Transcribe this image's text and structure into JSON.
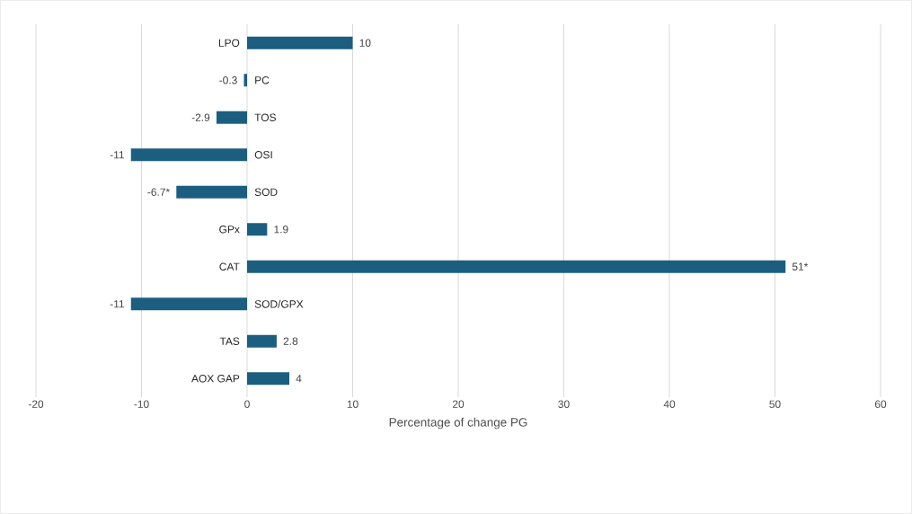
{
  "chart_data": {
    "type": "bar",
    "orientation": "horizontal",
    "xlabel": "Percentage of change PG",
    "categories": [
      "LPO",
      "PC",
      "TOS",
      "OSI",
      "SOD",
      "GPx",
      "CAT",
      "SOD/GPX",
      "TAS",
      "AOX GAP"
    ],
    "values": [
      10,
      -0.3,
      -2.9,
      -11,
      -6.7,
      1.9,
      51,
      -11,
      2.8,
      4
    ],
    "value_labels": [
      "10",
      "-0.3",
      "-2.9",
      "-11",
      "-6.7*",
      "1.9",
      "51*",
      "-11",
      "2.8",
      "4"
    ],
    "color": "#1b5e80",
    "xlim": [
      -20,
      60
    ],
    "xticks": [
      -20,
      -10,
      0,
      10,
      20,
      30,
      40,
      50,
      60
    ],
    "grid": "x"
  }
}
